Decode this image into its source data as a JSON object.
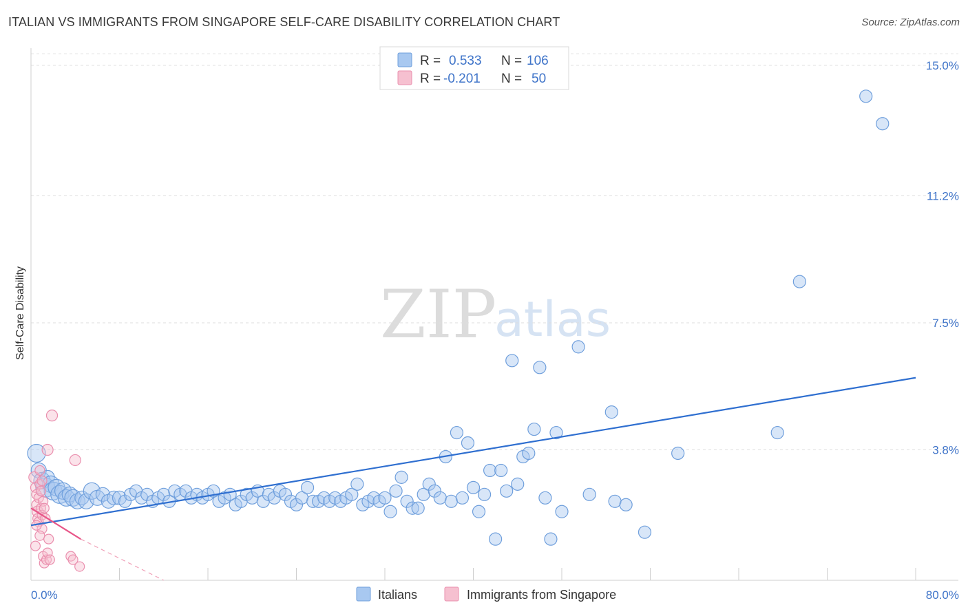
{
  "title": "ITALIAN VS IMMIGRANTS FROM SINGAPORE SELF-CARE DISABILITY CORRELATION CHART",
  "source": "Source: ZipAtlas.com",
  "watermark": {
    "part1": "ZIP",
    "part2": "atlas"
  },
  "legend": {
    "rows": [
      {
        "r_label": "R =",
        "r_value": "0.533",
        "n_label": "N =",
        "n_value": "106",
        "color": "#a8c8f0"
      },
      {
        "r_label": "R =",
        "r_value": "-0.201",
        "n_label": "N =",
        "n_value": "50",
        "color": "#f6b8c8"
      }
    ]
  },
  "bottom_legend": [
    {
      "label": "Italians",
      "color": "#a8c8f0"
    },
    {
      "label": "Immigrants from Singapore",
      "color": "#f6b8c8"
    }
  ],
  "chart_data": {
    "type": "scatter",
    "xlabel": "",
    "ylabel": "Self-Care Disability",
    "xlim": [
      0,
      80
    ],
    "ylim": [
      0,
      15.5
    ],
    "x_tick_labels": [
      "0.0%",
      "80.0%"
    ],
    "y_ticks": [
      3.8,
      7.5,
      11.2,
      15.0
    ],
    "y_tick_labels": [
      "3.8%",
      "7.5%",
      "11.2%",
      "15.0%"
    ],
    "grid": "horizontal dashed",
    "legend_placement": "top-center",
    "series": [
      {
        "name": "Italians",
        "color": "#7aaae8",
        "trend": {
          "x": [
            0,
            80
          ],
          "y": [
            1.6,
            5.9
          ],
          "color": "#2f6fd0"
        },
        "points": [
          [
            0.5,
            3.7,
            13
          ],
          [
            0.7,
            3.2,
            11
          ],
          [
            1.0,
            2.9,
            12
          ],
          [
            1.3,
            2.7,
            14
          ],
          [
            1.5,
            3.0,
            10
          ],
          [
            1.8,
            2.8,
            12
          ],
          [
            2.0,
            2.6,
            13
          ],
          [
            2.3,
            2.7,
            12
          ],
          [
            2.6,
            2.5,
            13
          ],
          [
            2.9,
            2.6,
            12
          ],
          [
            3.2,
            2.4,
            12
          ],
          [
            3.5,
            2.5,
            11
          ],
          [
            3.8,
            2.4,
            12
          ],
          [
            4.2,
            2.3,
            11
          ],
          [
            4.6,
            2.4,
            10
          ],
          [
            5.0,
            2.3,
            11
          ],
          [
            5.5,
            2.6,
            12
          ],
          [
            6.0,
            2.4,
            11
          ],
          [
            6.5,
            2.5,
            10
          ],
          [
            7.0,
            2.3,
            10
          ],
          [
            7.5,
            2.4,
            10
          ],
          [
            8.0,
            2.4,
            10
          ],
          [
            8.5,
            2.3,
            9
          ],
          [
            9.0,
            2.5,
            9
          ],
          [
            9.5,
            2.6,
            9
          ],
          [
            10.0,
            2.4,
            9
          ],
          [
            10.5,
            2.5,
            9
          ],
          [
            11.0,
            2.3,
            9
          ],
          [
            11.5,
            2.4,
            9
          ],
          [
            12.0,
            2.5,
            9
          ],
          [
            12.5,
            2.3,
            9
          ],
          [
            13.0,
            2.6,
            9
          ],
          [
            13.5,
            2.5,
            9
          ],
          [
            14.0,
            2.6,
            9
          ],
          [
            14.5,
            2.4,
            9
          ],
          [
            15.0,
            2.5,
            9
          ],
          [
            15.5,
            2.4,
            9
          ],
          [
            16.0,
            2.5,
            9
          ],
          [
            16.5,
            2.6,
            9
          ],
          [
            17.0,
            2.3,
            9
          ],
          [
            17.5,
            2.4,
            9
          ],
          [
            18.0,
            2.5,
            9
          ],
          [
            18.5,
            2.2,
            9
          ],
          [
            19.0,
            2.3,
            9
          ],
          [
            19.5,
            2.5,
            9
          ],
          [
            20.0,
            2.4,
            9
          ],
          [
            20.5,
            2.6,
            9
          ],
          [
            21.0,
            2.3,
            9
          ],
          [
            21.5,
            2.5,
            9
          ],
          [
            22.0,
            2.4,
            9
          ],
          [
            22.5,
            2.6,
            9
          ],
          [
            23.0,
            2.5,
            9
          ],
          [
            23.5,
            2.3,
            9
          ],
          [
            24.0,
            2.2,
            9
          ],
          [
            24.5,
            2.4,
            9
          ],
          [
            25.0,
            2.7,
            9
          ],
          [
            25.5,
            2.3,
            9
          ],
          [
            26.0,
            2.3,
            9
          ],
          [
            26.5,
            2.4,
            9
          ],
          [
            27.0,
            2.3,
            9
          ],
          [
            27.5,
            2.4,
            9
          ],
          [
            28.0,
            2.3,
            9
          ],
          [
            28.5,
            2.4,
            9
          ],
          [
            29.0,
            2.5,
            9
          ],
          [
            29.5,
            2.8,
            9
          ],
          [
            30.0,
            2.2,
            9
          ],
          [
            30.5,
            2.3,
            9
          ],
          [
            31.0,
            2.4,
            9
          ],
          [
            31.5,
            2.3,
            9
          ],
          [
            32.0,
            2.4,
            9
          ],
          [
            32.5,
            2.0,
            9
          ],
          [
            33.0,
            2.6,
            9
          ],
          [
            33.5,
            3.0,
            9
          ],
          [
            34.0,
            2.3,
            9
          ],
          [
            34.5,
            2.1,
            9
          ],
          [
            35.0,
            2.1,
            9
          ],
          [
            35.5,
            2.5,
            9
          ],
          [
            36.0,
            2.8,
            9
          ],
          [
            36.5,
            2.6,
            9
          ],
          [
            37.0,
            2.4,
            9
          ],
          [
            37.5,
            3.6,
            9
          ],
          [
            38.0,
            2.3,
            9
          ],
          [
            38.5,
            4.3,
            9
          ],
          [
            39.0,
            2.4,
            9
          ],
          [
            39.5,
            4.0,
            9
          ],
          [
            40.0,
            2.7,
            9
          ],
          [
            40.5,
            2.0,
            9
          ],
          [
            41.0,
            2.5,
            9
          ],
          [
            41.5,
            3.2,
            9
          ],
          [
            42.0,
            1.2,
            9
          ],
          [
            42.5,
            3.2,
            9
          ],
          [
            43.0,
            2.6,
            9
          ],
          [
            43.5,
            6.4,
            9
          ],
          [
            44.0,
            2.8,
            9
          ],
          [
            44.5,
            3.6,
            9
          ],
          [
            45.0,
            3.7,
            9
          ],
          [
            45.5,
            4.4,
            9
          ],
          [
            46.0,
            6.2,
            9
          ],
          [
            46.5,
            2.4,
            9
          ],
          [
            47.0,
            1.2,
            9
          ],
          [
            47.5,
            4.3,
            9
          ],
          [
            48.0,
            2.0,
            9
          ],
          [
            49.5,
            6.8,
            9
          ],
          [
            50.5,
            2.5,
            9
          ],
          [
            52.5,
            4.9,
            9
          ],
          [
            52.8,
            2.3,
            9
          ],
          [
            53.8,
            2.2,
            9
          ],
          [
            55.5,
            1.4,
            9
          ],
          [
            58.5,
            3.7,
            9
          ],
          [
            67.5,
            4.3,
            9
          ],
          [
            69.5,
            8.7,
            9
          ],
          [
            75.5,
            14.1,
            9
          ],
          [
            77.0,
            13.3,
            9
          ]
        ]
      },
      {
        "name": "Immigrants from Singapore",
        "color": "#f08aa8",
        "trend": {
          "x": [
            0,
            4.5
          ],
          "y": [
            2.1,
            1.2
          ],
          "dashed_to": [
            12,
            0
          ],
          "color": "#e85588"
        },
        "points": [
          [
            0.3,
            3.0,
            8
          ],
          [
            0.4,
            2.7,
            7
          ],
          [
            0.5,
            2.5,
            7
          ],
          [
            0.5,
            2.2,
            7
          ],
          [
            0.6,
            2.0,
            8
          ],
          [
            0.6,
            1.8,
            7
          ],
          [
            0.7,
            2.4,
            7
          ],
          [
            0.7,
            1.7,
            7
          ],
          [
            0.8,
            3.2,
            7
          ],
          [
            0.8,
            2.8,
            7
          ],
          [
            0.9,
            2.6,
            7
          ],
          [
            0.9,
            2.1,
            7
          ],
          [
            1.0,
            1.9,
            7
          ],
          [
            1.0,
            1.5,
            7
          ],
          [
            1.1,
            2.3,
            7
          ],
          [
            1.1,
            0.7,
            7
          ],
          [
            1.2,
            0.5,
            7
          ],
          [
            1.3,
            1.8,
            7
          ],
          [
            1.4,
            0.6,
            7
          ],
          [
            1.5,
            0.8,
            7
          ],
          [
            1.5,
            3.8,
            8
          ],
          [
            1.7,
            0.6,
            7
          ],
          [
            1.9,
            4.8,
            8
          ],
          [
            1.0,
            2.9,
            7
          ],
          [
            1.2,
            2.1,
            7
          ],
          [
            0.4,
            1.0,
            7
          ],
          [
            3.6,
            0.7,
            7
          ],
          [
            3.8,
            0.6,
            7
          ],
          [
            4.0,
            3.5,
            8
          ],
          [
            4.4,
            0.4,
            7
          ],
          [
            0.5,
            1.6,
            7
          ],
          [
            0.8,
            1.3,
            7
          ],
          [
            1.6,
            1.2,
            7
          ]
        ]
      }
    ]
  }
}
